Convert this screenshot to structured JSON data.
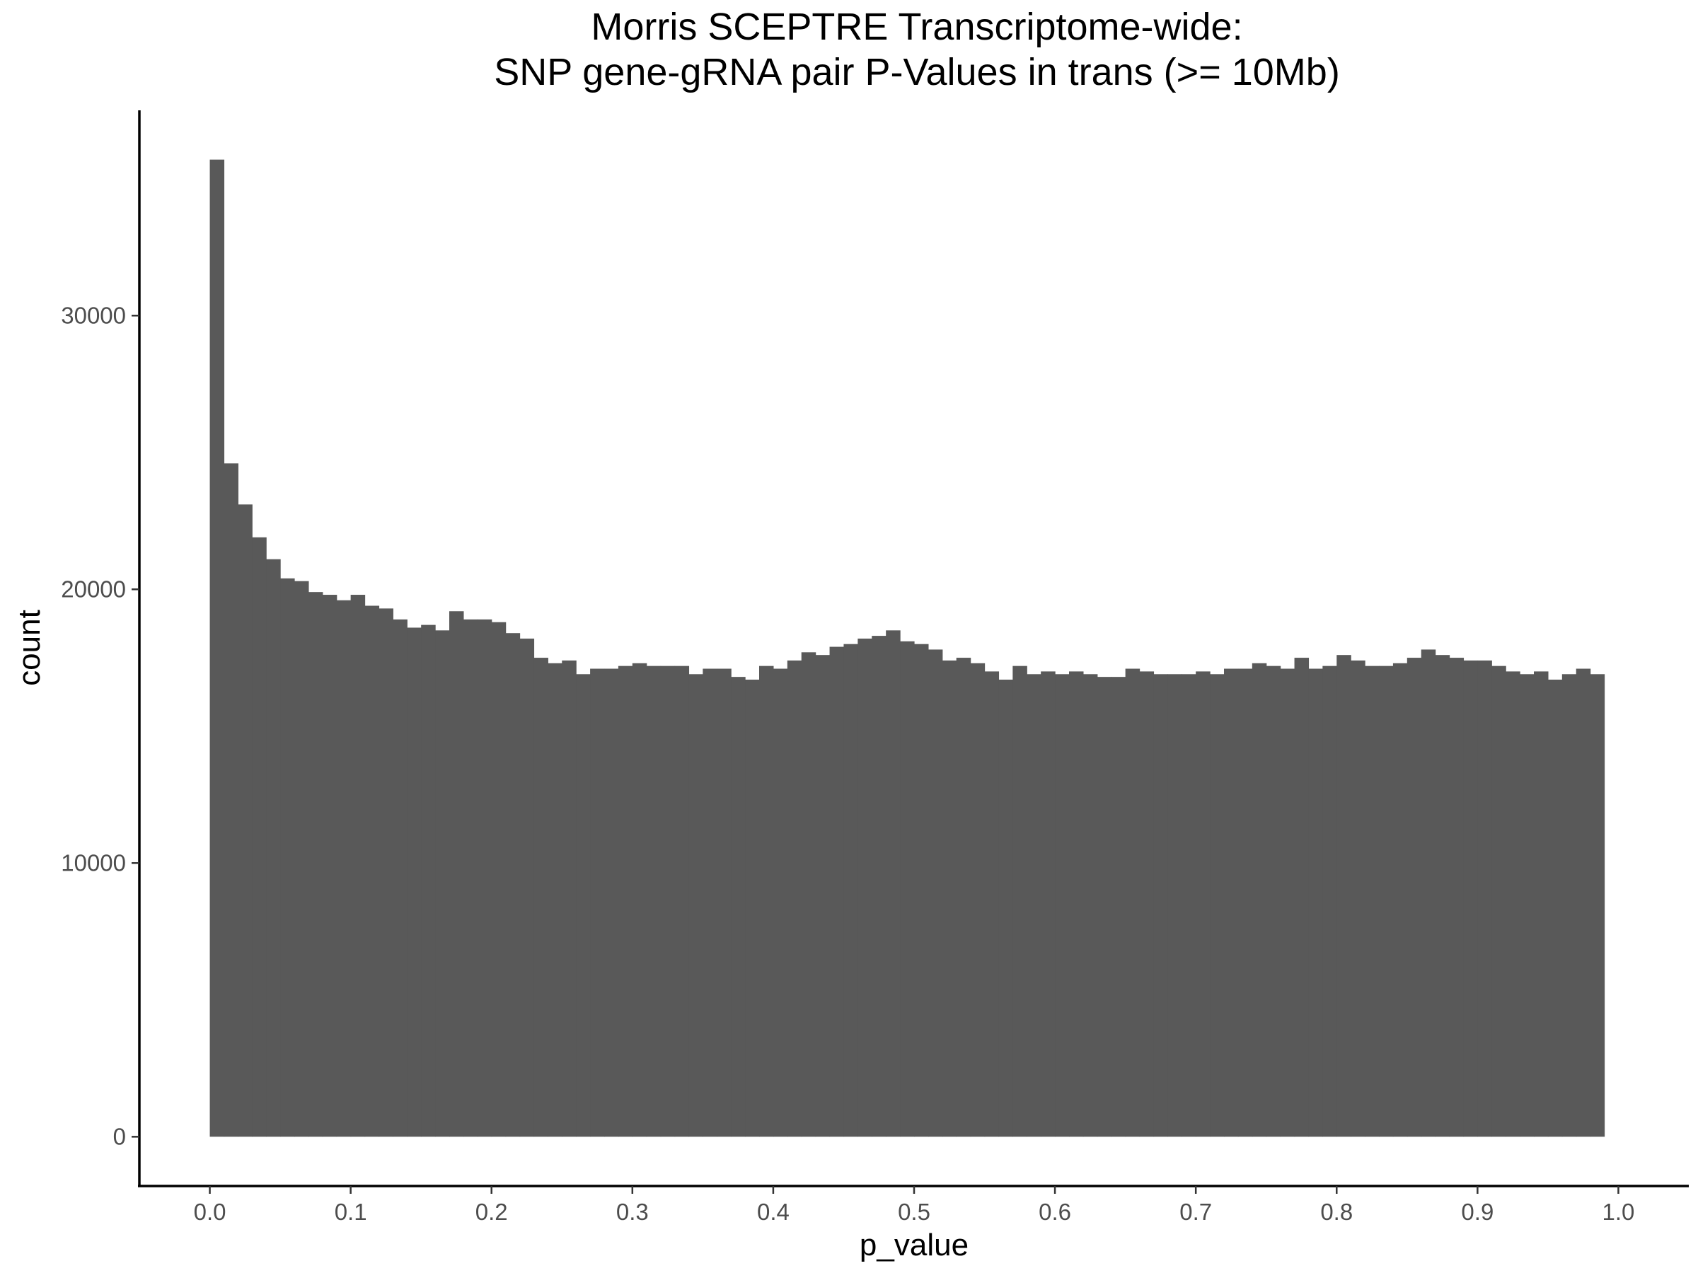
{
  "chart_data": {
    "type": "bar",
    "title_lines": [
      "Morris SCEPTRE Transcriptome-wide:",
      "SNP gene-gRNA pair P-Values in trans (>= 10Mb)"
    ],
    "xlabel": "p_value",
    "ylabel": "count",
    "xlim": [
      -0.05,
      1.05
    ],
    "ylim": [
      -1800,
      37500
    ],
    "x_ticks": [
      0.0,
      0.1,
      0.2,
      0.3,
      0.4,
      0.5,
      0.6,
      0.7,
      0.8,
      0.9,
      1.0
    ],
    "x_tick_labels": [
      "0.0",
      "0.1",
      "0.2",
      "0.3",
      "0.4",
      "0.5",
      "0.6",
      "0.7",
      "0.8",
      "0.9",
      "1.0"
    ],
    "y_ticks": [
      0,
      10000,
      20000,
      30000
    ],
    "y_tick_labels": [
      "0",
      "10000",
      "20000",
      "30000"
    ],
    "bin_start": 0.0,
    "bin_width": 0.01,
    "bar_color": "#595959",
    "grid": false,
    "values": [
      35700,
      24600,
      23100,
      21900,
      21100,
      20400,
      20300,
      19900,
      19800,
      19600,
      19800,
      19400,
      19300,
      18900,
      18600,
      18700,
      18500,
      19200,
      18900,
      18900,
      18800,
      18400,
      18200,
      17500,
      17300,
      17400,
      16900,
      17100,
      17100,
      17200,
      17300,
      17200,
      17200,
      17200,
      16900,
      17100,
      17100,
      16800,
      16700,
      17200,
      17100,
      17400,
      17700,
      17600,
      17900,
      18000,
      18200,
      18300,
      18500,
      18100,
      18000,
      17800,
      17400,
      17500,
      17300,
      17000,
      16700,
      17200,
      16900,
      17000,
      16900,
      17000,
      16900,
      16800,
      16800,
      17100,
      17000,
      16900,
      16900,
      16900,
      17000,
      16900,
      17100,
      17100,
      17300,
      17200,
      17100,
      17500,
      17100,
      17200,
      17600,
      17400,
      17200,
      17200,
      17300,
      17500,
      17800,
      17600,
      17500,
      17400,
      17400,
      17200,
      17000,
      16900,
      17000,
      16700,
      16900,
      17100,
      16900
    ]
  }
}
